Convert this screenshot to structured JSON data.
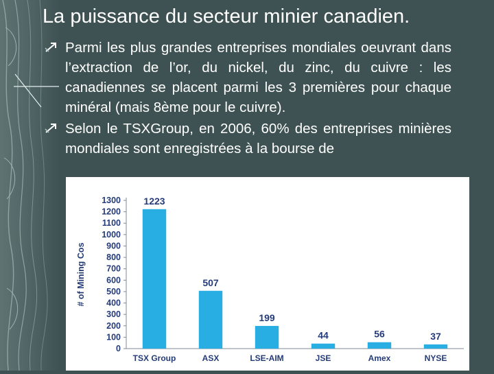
{
  "slide": {
    "title": "La puissance du secteur minier canadien.",
    "bullets": [
      {
        "icon": "bullet-arrow-icon",
        "text": "Parmi les plus grandes entreprises mondiales oeuvrant dans l’extraction de l’or, du nickel, du zinc, du cuivre : les canadiennes se placent parmi les 3 premières pour chaque minéral (mais 8ème pour le cuivre)."
      },
      {
        "icon": "bullet-arrow-icon",
        "text": " Selon le TSXGroup, en 2006, 60% des entreprises minières mondiales sont enregistrées à la bourse de"
      }
    ]
  },
  "colors": {
    "background": "#3f5253",
    "bar": "#29aee3",
    "axis_text": "#243b78"
  },
  "chart_data": {
    "type": "bar",
    "categories": [
      "TSX Group",
      "ASX",
      "LSE-AIM",
      "JSE",
      "Amex",
      "NYSE"
    ],
    "values": [
      1223,
      507,
      199,
      44,
      56,
      37
    ],
    "data_labels": [
      "1223",
      "507",
      "199",
      "44",
      "56",
      "37"
    ],
    "ylabel": "# of Mining Cos",
    "ylim": [
      0,
      1300
    ],
    "yticks": [
      0,
      100,
      200,
      300,
      400,
      500,
      600,
      700,
      800,
      900,
      1000,
      1100,
      1200,
      1300
    ],
    "grid": false,
    "legend": "none"
  }
}
